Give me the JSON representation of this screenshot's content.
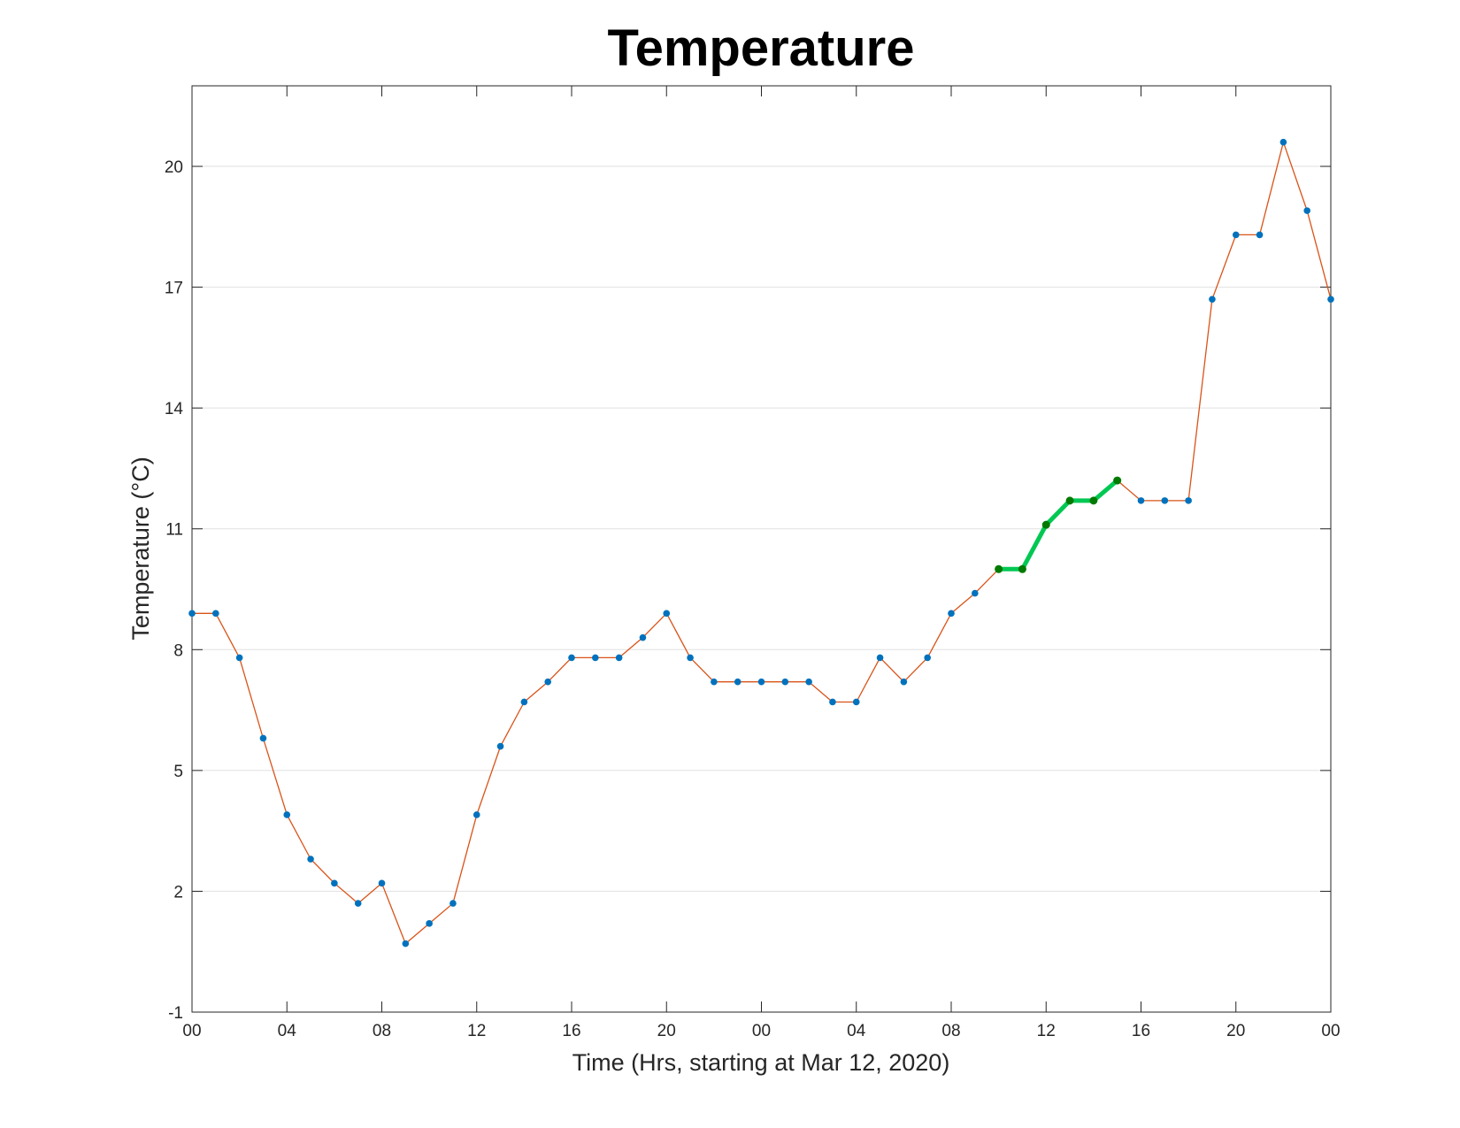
{
  "chart_data": {
    "type": "line",
    "title": "Temperature",
    "xlabel": "Time (Hrs, starting at Mar 12, 2020)",
    "ylabel": "Temperature (°C)",
    "ylim": [
      -1,
      22
    ],
    "xlim": [
      0,
      48
    ],
    "grid": "horizontal",
    "x_tick_values": [
      0,
      4,
      8,
      12,
      16,
      20,
      24,
      28,
      32,
      36,
      40,
      44,
      48
    ],
    "x_tick_labels": [
      "00",
      "04",
      "08",
      "12",
      "16",
      "20",
      "00",
      "04",
      "08",
      "12",
      "16",
      "20",
      "00"
    ],
    "y_tick_values": [
      -1,
      2,
      5,
      8,
      11,
      14,
      17,
      20
    ],
    "y_tick_labels": [
      "-1",
      "2",
      "5",
      "8",
      "11",
      "14",
      "17",
      "20"
    ],
    "x": [
      0,
      1,
      2,
      3,
      4,
      5,
      6,
      7,
      8,
      9,
      10,
      11,
      12,
      13,
      14,
      15,
      16,
      17,
      18,
      19,
      20,
      21,
      22,
      23,
      24,
      25,
      26,
      27,
      28,
      29,
      30,
      31,
      32,
      33,
      34,
      35,
      36,
      37,
      38,
      39,
      40,
      41,
      42,
      43,
      44,
      45,
      46,
      47,
      48
    ],
    "series": [
      {
        "values": [
          8.9,
          8.9,
          7.8,
          5.8,
          3.9,
          2.8,
          2.2,
          1.7,
          2.2,
          0.7,
          1.2,
          1.7,
          3.9,
          5.6,
          6.7,
          7.2,
          7.8,
          7.8,
          7.8,
          8.3,
          8.9,
          7.8,
          7.2,
          7.2,
          7.2,
          7.2,
          7.2,
          6.7,
          6.7,
          7.8,
          7.2,
          7.8,
          8.9,
          9.4,
          10.0,
          10.0,
          11.1,
          11.7,
          11.7,
          12.2,
          11.7,
          11.7,
          11.7,
          16.7,
          18.3,
          18.3,
          20.6,
          18.9,
          16.7
        ],
        "color": "#d95319",
        "marker_color": "#0072bd"
      }
    ],
    "highlight": {
      "x_range": [
        34,
        39
      ],
      "color": "#00c853",
      "marker_color": "#007a00"
    }
  }
}
